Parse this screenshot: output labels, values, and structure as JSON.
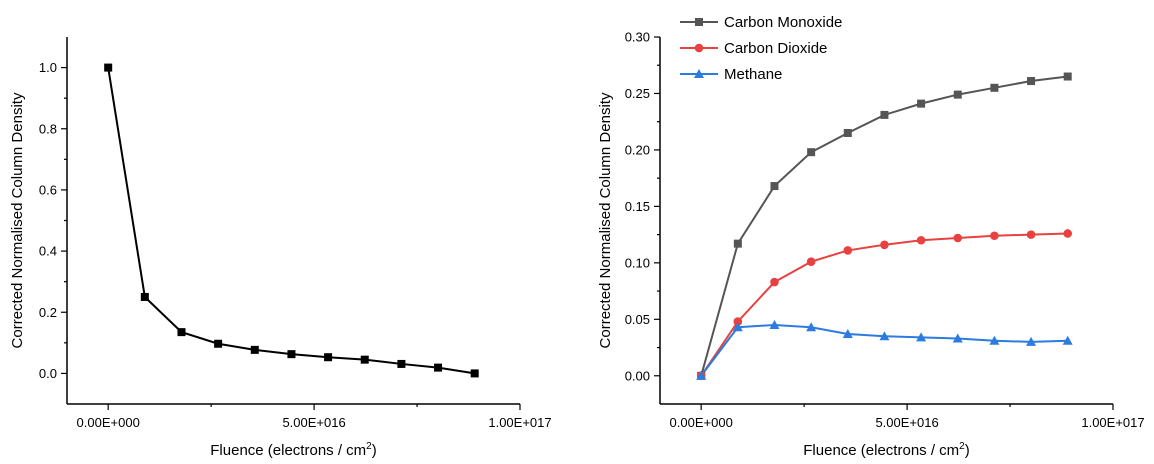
{
  "chart_data": [
    {
      "type": "line",
      "title": "",
      "xlabel": "Fluence (electrons / cm",
      "xlabel_sup": "2",
      "xlabel_end": ")",
      "ylabel": "Corrected Normalised Column Density",
      "xlim": [
        -1e+16,
        1e+17
      ],
      "ylim": [
        -0.1,
        1.1
      ],
      "x_ticks": [
        0,
        5e+16,
        1e+17
      ],
      "x_tick_labels": [
        "0.00E+000",
        "5.00E+016",
        "1.00E+017"
      ],
      "y_ticks": [
        0,
        0.2,
        0.4,
        0.6,
        0.8,
        1.0
      ],
      "y_tick_labels": [
        "0.0",
        "0.2",
        "0.4",
        "0.6",
        "0.8",
        "1.0"
      ],
      "grid": false,
      "legend": "none",
      "x": [
        0,
        8900000000000000.0,
        1.78e+16,
        2.67e+16,
        3.56e+16,
        4.45e+16,
        5.34e+16,
        6.23e+16,
        7.12e+16,
        8.01e+16,
        8.9e+16
      ],
      "series": [
        {
          "color": "#000000",
          "marker": "square",
          "values": [
            1.0,
            0.25,
            0.135,
            0.097,
            0.077,
            0.063,
            0.053,
            0.045,
            0.031,
            0.019,
            0.0
          ]
        }
      ]
    },
    {
      "type": "line",
      "title": "",
      "xlabel": "Fluence (electrons / cm",
      "xlabel_sup": "2",
      "xlabel_end": ")",
      "ylabel": "Corrected Normalised Column Density",
      "xlim": [
        -1e+16,
        1e+17
      ],
      "ylim": [
        -0.025,
        0.3
      ],
      "x_ticks": [
        0,
        5e+16,
        1e+17
      ],
      "x_tick_labels": [
        "0.00E+000",
        "5.00E+016",
        "1.00E+017"
      ],
      "y_ticks": [
        0,
        0.05,
        0.1,
        0.15,
        0.2,
        0.25,
        0.3
      ],
      "y_tick_labels": [
        "0.00",
        "0.05",
        "0.10",
        "0.15",
        "0.20",
        "0.25",
        "0.30"
      ],
      "grid": false,
      "legend": "top-left",
      "x": [
        0,
        8900000000000000.0,
        1.78e+16,
        2.67e+16,
        3.56e+16,
        4.45e+16,
        5.34e+16,
        6.23e+16,
        7.12e+16,
        8.01e+16,
        8.9e+16
      ],
      "series": [
        {
          "name": "Carbon Monoxide",
          "color": "#555555",
          "marker": "square",
          "values": [
            0.0,
            0.117,
            0.168,
            0.198,
            0.215,
            0.231,
            0.241,
            0.249,
            0.255,
            0.261,
            0.265
          ]
        },
        {
          "name": "Carbon Dioxide",
          "color": "#e8413f",
          "marker": "circle",
          "values": [
            0.0,
            0.048,
            0.083,
            0.101,
            0.111,
            0.116,
            0.12,
            0.122,
            0.124,
            0.125,
            0.126
          ]
        },
        {
          "name": "Methane",
          "color": "#2b7be0",
          "marker": "triangle",
          "values": [
            0.0,
            0.043,
            0.045,
            0.043,
            0.037,
            0.035,
            0.034,
            0.033,
            0.031,
            0.03,
            0.031
          ]
        }
      ]
    }
  ]
}
